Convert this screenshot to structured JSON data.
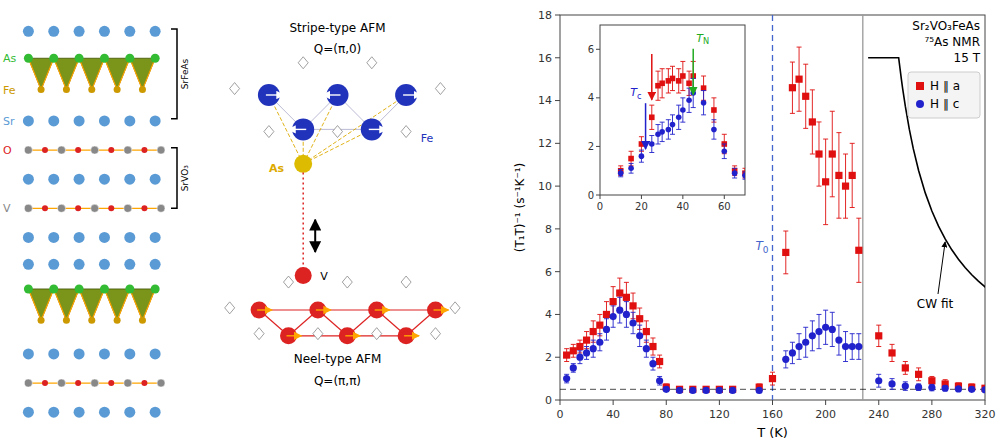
{
  "chart_data": {
    "type": "scatter",
    "x_label": "T (K)",
    "y_label": "(T₁T)⁻¹ (s⁻¹K⁻¹)",
    "xlim": [
      0,
      320
    ],
    "xticks": [
      0,
      40,
      80,
      120,
      160,
      200,
      240,
      280,
      320
    ],
    "ylim": [
      0,
      18
    ],
    "yticks": [
      0,
      2,
      4,
      6,
      8,
      10,
      12,
      14,
      16,
      18
    ],
    "grid": false,
    "legend": "upper right",
    "series": [
      {
        "name": "H ∥ a",
        "color": "#e01010",
        "marker": "square",
        "x": [
          5,
          10,
          15,
          20,
          25,
          30,
          35,
          40,
          45,
          50,
          55,
          60,
          65,
          70,
          75,
          80,
          90,
          100,
          110,
          120,
          130,
          150,
          160,
          170,
          175,
          180,
          185,
          190,
          195,
          200,
          205,
          210,
          215,
          220,
          225,
          240,
          250,
          260,
          270,
          280,
          290,
          300,
          310,
          320
        ],
        "values": [
          2.1,
          2.3,
          2.5,
          2.8,
          3.2,
          3.5,
          4.0,
          4.6,
          5.0,
          4.8,
          4.4,
          3.8,
          3.2,
          2.5,
          1.8,
          0.6,
          0.5,
          0.5,
          0.5,
          0.5,
          0.5,
          0.6,
          1.0,
          6.9,
          14.6,
          15.0,
          14.2,
          13.0,
          11.5,
          10.2,
          11.5,
          10.5,
          10.0,
          10.5,
          7.0,
          3.0,
          2.2,
          1.5,
          1.2,
          0.9,
          0.75,
          0.65,
          0.6,
          0.55
        ],
        "errors": [
          0.3,
          0.3,
          0.3,
          0.4,
          0.5,
          0.5,
          0.6,
          0.7,
          0.7,
          0.7,
          0.6,
          0.5,
          0.5,
          0.4,
          0.3,
          0.15,
          0.1,
          0.1,
          0.1,
          0.1,
          0.1,
          0.15,
          0.3,
          1.0,
          1.2,
          1.5,
          1.5,
          1.5,
          1.5,
          2.0,
          2.0,
          2.0,
          1.5,
          1.5,
          1.5,
          0.5,
          0.4,
          0.3,
          0.3,
          0.2,
          0.2,
          0.15,
          0.15,
          0.1
        ]
      },
      {
        "name": "H ∥ c",
        "color": "#2222cc",
        "marker": "circle",
        "x": [
          5,
          10,
          15,
          20,
          25,
          30,
          35,
          40,
          45,
          50,
          55,
          60,
          65,
          70,
          75,
          80,
          90,
          100,
          110,
          120,
          130,
          150,
          170,
          175,
          180,
          185,
          190,
          195,
          200,
          205,
          210,
          215,
          220,
          225,
          240,
          250,
          260,
          270,
          280,
          290,
          300,
          310,
          320
        ],
        "values": [
          1.0,
          1.5,
          2.0,
          2.2,
          2.4,
          2.7,
          3.3,
          3.9,
          4.2,
          4.0,
          3.6,
          3.0,
          2.4,
          1.7,
          0.9,
          0.5,
          0.45,
          0.45,
          0.45,
          0.45,
          0.45,
          0.45,
          1.9,
          2.2,
          2.5,
          2.7,
          3.0,
          3.2,
          3.4,
          3.3,
          2.8,
          2.5,
          2.5,
          2.5,
          0.9,
          0.75,
          0.65,
          0.6,
          0.58,
          0.55,
          0.52,
          0.5,
          0.48
        ],
        "errors": [
          0.2,
          0.2,
          0.3,
          0.3,
          0.4,
          0.4,
          0.5,
          0.5,
          0.6,
          0.6,
          0.5,
          0.5,
          0.4,
          0.3,
          0.2,
          0.1,
          0.1,
          0.1,
          0.1,
          0.1,
          0.1,
          0.1,
          0.4,
          0.5,
          0.6,
          0.7,
          0.7,
          0.8,
          0.8,
          0.8,
          0.7,
          0.7,
          0.6,
          0.6,
          0.3,
          0.25,
          0.2,
          0.15,
          0.15,
          0.12,
          0.1,
          0.1,
          0.1
        ]
      },
      {
        "type": "line",
        "color": "#000000",
        "line_style": "solid",
        "x": [
          232,
          255,
          256,
          257,
          258,
          260,
          263,
          266,
          270,
          275,
          280,
          285,
          290,
          295,
          300,
          305,
          310,
          315,
          320,
          322
        ],
        "values": [
          16,
          16,
          15.5,
          15.0161,
          14.5625,
          13.7353,
          12.6622,
          11.75,
          10.7273,
          9.6837,
          8.8333,
          8.1271,
          7.53125,
          7.0217,
          6.5811,
          6.1962,
          5.8571,
          5.5562,
          5.2872,
          5.1875
        ]
      }
    ],
    "lines": [
      {
        "x": 160,
        "color": "#4466cc",
        "line_style": "dashed",
        "label": "T0"
      },
      {
        "x": 228,
        "color": "#999999",
        "line_style": "solid"
      },
      {
        "y": 0.5,
        "color": "#000000",
        "line_style": "dashed"
      }
    ],
    "annotations": [
      {
        "text": "Sr₂VO₃FeAs"
      },
      {
        "text": "⁷⁵As NMR"
      },
      {
        "text": "15 T"
      },
      {
        "text": "CW fit"
      }
    ],
    "inset": {
      "xlim": [
        0,
        70
      ],
      "xticks": [
        0,
        20,
        40,
        60
      ],
      "ylim": [
        0,
        7
      ],
      "yticks": [
        0,
        2,
        4,
        6
      ],
      "series": [
        {
          "color": "#e01010",
          "marker": "square",
          "x": [
            10,
            15,
            20,
            25,
            28,
            30,
            33,
            35,
            38,
            40,
            43,
            45,
            50,
            55,
            60,
            65,
            70
          ],
          "values": [
            1.0,
            1.5,
            2.1,
            3.2,
            4.5,
            4.6,
            4.7,
            4.8,
            4.7,
            4.9,
            4.6,
            4.9,
            4.4,
            3.5,
            2.1,
            1.0,
            0.9
          ],
          "errors": [
            0.2,
            0.3,
            0.3,
            0.5,
            0.6,
            0.6,
            0.5,
            0.5,
            0.5,
            0.6,
            0.5,
            0.6,
            0.5,
            0.5,
            0.4,
            0.2,
            0.2
          ]
        },
        {
          "color": "#2222cc",
          "marker": "circle",
          "x": [
            10,
            15,
            20,
            25,
            28,
            30,
            33,
            35,
            38,
            40,
            43,
            45,
            50,
            55,
            60,
            65,
            70
          ],
          "values": [
            0.9,
            1.1,
            1.6,
            2.1,
            2.5,
            2.6,
            2.7,
            2.9,
            3.2,
            3.5,
            3.9,
            4.2,
            3.8,
            2.7,
            1.8,
            0.9,
            0.8
          ],
          "errors": [
            0.15,
            0.2,
            0.25,
            0.35,
            0.4,
            0.4,
            0.4,
            0.4,
            0.5,
            0.5,
            0.5,
            0.6,
            0.5,
            0.4,
            0.3,
            0.2,
            0.15
          ]
        }
      ],
      "markers": [
        {
          "text": "Tc",
          "x": 22,
          "color": "#2222cc"
        },
        {
          "x": 25,
          "color": "#e01010"
        },
        {
          "text": "TN",
          "x": 45,
          "color": "#22aa22"
        }
      ]
    },
    "illustration": {
      "structure_labels": [
        {
          "text": "As",
          "color": "#33bb33"
        },
        {
          "text": "Fe",
          "color": "#cc9900"
        },
        {
          "text": "Sr",
          "color": "#5b9bd5"
        },
        {
          "text": "O",
          "color": "#dd2222"
        },
        {
          "text": "V",
          "color": "#888888"
        }
      ],
      "structure_blocks": [
        "SrFeAs",
        "SrVO₃"
      ],
      "afm": [
        {
          "title": "Stripe-type AFM",
          "q": "Q=(π,0)"
        },
        {
          "title": "Neel-type AFM",
          "q": "Q=(π,π)"
        }
      ],
      "afm_labels": [
        {
          "text": "As",
          "color": "#ddaa00"
        },
        {
          "text": "Fe",
          "color": "#2233bb"
        },
        {
          "text": "V",
          "color": "#000000"
        }
      ]
    }
  }
}
